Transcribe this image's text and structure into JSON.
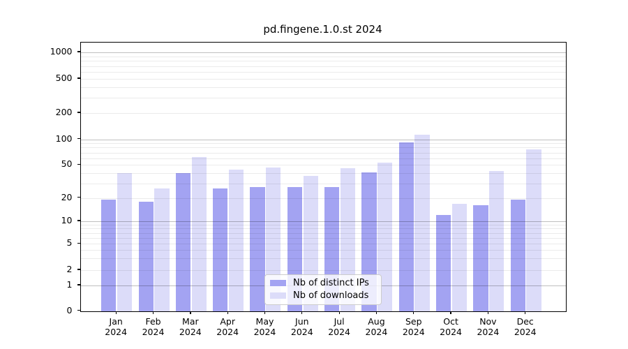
{
  "title": "pd.fingene.1.0.st 2024",
  "chart_data": {
    "type": "bar",
    "title": "pd.fingene.1.0.st 2024",
    "categories": [
      "Jan 2024",
      "Feb 2024",
      "Mar 2024",
      "Apr 2024",
      "May 2024",
      "Jun 2024",
      "Jul 2024",
      "Aug 2024",
      "Sep 2024",
      "Oct 2024",
      "Nov 2024",
      "Dec 2024"
    ],
    "x_axis": {
      "months": [
        "Jan",
        "Feb",
        "Mar",
        "Apr",
        "May",
        "Jun",
        "Jul",
        "Aug",
        "Sep",
        "Oct",
        "Nov",
        "Dec"
      ],
      "year_label": "2024"
    },
    "y_axis": {
      "scale": "log-like (asinh), 0 shown at baseline",
      "tick_labels": [
        "0",
        "1",
        "2",
        "5",
        "10",
        "20",
        "50",
        "100",
        "200",
        "500",
        "1000"
      ],
      "range": [
        0,
        1000
      ]
    },
    "series": [
      {
        "name": "Nb of distinct IPs",
        "color": "#a3a3f2",
        "values": [
          19,
          18,
          40,
          26,
          27,
          27,
          27,
          41,
          92,
          12,
          16,
          19
        ]
      },
      {
        "name": "Nb of downloads",
        "color": "#dcdcf9",
        "values": [
          40,
          26,
          62,
          44,
          47,
          37,
          46,
          53,
          113,
          17,
          42,
          77
        ]
      }
    ],
    "grid": true,
    "grid_major_at": [
      1,
      10,
      100,
      1000
    ],
    "legend_position": "lower center, inside plot"
  }
}
